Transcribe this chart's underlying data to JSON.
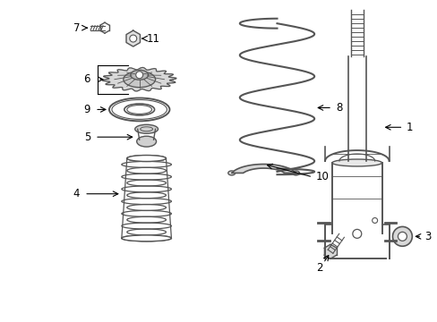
{
  "background_color": "#ffffff",
  "line_color": "#555555",
  "label_color": "#000000",
  "figsize": [
    4.89,
    3.6
  ],
  "dpi": 100
}
